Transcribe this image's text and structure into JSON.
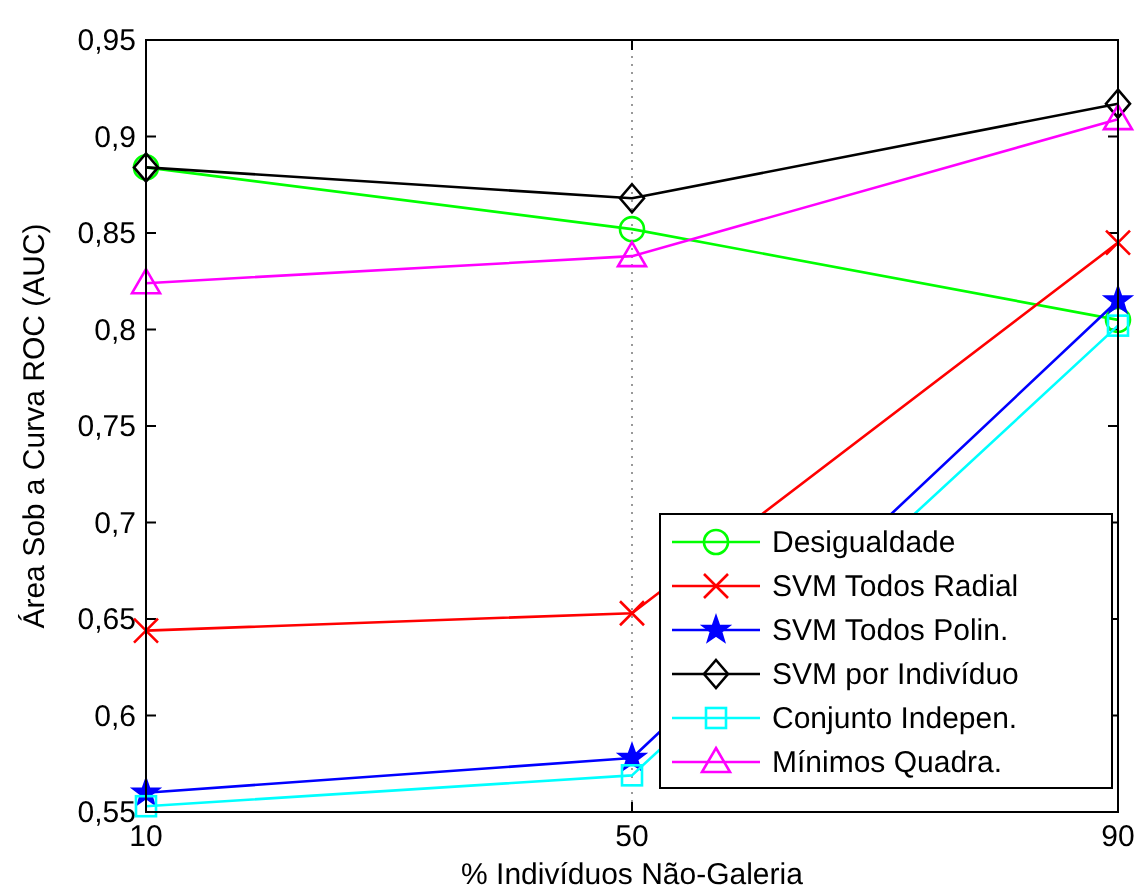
{
  "chart_data": {
    "type": "line",
    "xlabel": "% Indivíduos Não-Galeria",
    "ylabel": "Área Sob a Curva ROC (AUC)",
    "x": [
      10,
      50,
      90
    ],
    "xlim": [
      10,
      90
    ],
    "xticks": [
      10,
      50,
      90
    ],
    "ylim": [
      0.55,
      0.95
    ],
    "yticks": [
      {
        "value": 0.55,
        "label": "0,55"
      },
      {
        "value": 0.6,
        "label": "0,6"
      },
      {
        "value": 0.65,
        "label": "0,65"
      },
      {
        "value": 0.7,
        "label": "0,7"
      },
      {
        "value": 0.75,
        "label": "0,75"
      },
      {
        "value": 0.8,
        "label": "0,8"
      },
      {
        "value": 0.85,
        "label": "0,85"
      },
      {
        "value": 0.9,
        "label": "0,9"
      },
      {
        "value": 0.95,
        "label": "0,95"
      }
    ],
    "grid": "x",
    "legend": "bottom right",
    "line_style": "solid",
    "series": [
      {
        "name": "Desigualdade",
        "color": "#00ff00",
        "marker": "circle",
        "values": [
          0.884,
          0.852,
          0.805
        ]
      },
      {
        "name": "SVM Todos Radial",
        "color": "#ff0000",
        "marker": "cross",
        "values": [
          0.644,
          0.653,
          0.845
        ]
      },
      {
        "name": "SVM Todos Polin.",
        "color": "#0000ff",
        "marker": "star",
        "values": [
          0.56,
          0.578,
          0.815
        ]
      },
      {
        "name": "SVM por Indivíduo",
        "color": "#000000",
        "marker": "diamond",
        "values": [
          0.884,
          0.868,
          0.917
        ]
      },
      {
        "name": "Conjunto Indepen.",
        "color": "#00ffff",
        "marker": "square",
        "values": [
          0.553,
          0.569,
          0.802
        ]
      },
      {
        "name": "Mínimos Quadra.",
        "color": "#ff00ff",
        "marker": "triangle",
        "values": [
          0.824,
          0.838,
          0.909
        ]
      }
    ]
  }
}
